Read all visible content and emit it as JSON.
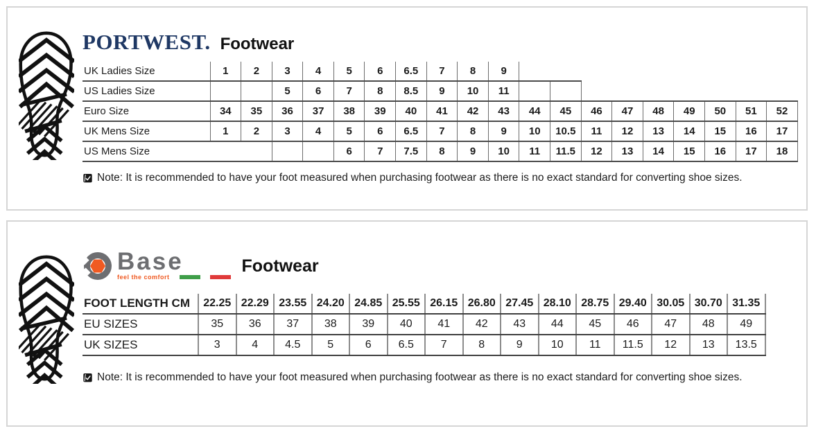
{
  "colors": {
    "portwest_navy": "#1f3864",
    "base_gray": "#6d6e71",
    "base_orange": "#f05a22",
    "flag_green": "#3f9e49",
    "flag_red": "#e03a3a",
    "table_line": "#4a4a4a",
    "panel_border": "#d5d5d5"
  },
  "icons": {
    "side": "boot-sole-print-icon",
    "note": "checked-note-icon"
  },
  "portwest": {
    "brand": "PORTWEST.",
    "product_line": "Footwear",
    "note": "Note: It is recommended to have your foot measured when purchasing footwear as there is no exact standard for converting shoe sizes.",
    "size_table": {
      "rows": [
        {
          "label": "UK Ladies Size",
          "bottomSpan": 10,
          "cells": [
            "1",
            "2",
            "3",
            "4",
            "5",
            "6",
            "6.5",
            "7",
            "8",
            "9",
            null,
            null,
            null,
            null,
            null,
            null,
            null,
            null,
            null
          ]
        },
        {
          "label": "US Ladies Size",
          "bottomSpan": 12,
          "noLeftFirst": true,
          "tops": [
            10,
            11
          ],
          "cells": [
            "",
            "",
            "5",
            "6",
            "7",
            "8",
            "8.5",
            "9",
            "10",
            "11",
            "",
            "",
            null,
            null,
            null,
            null,
            null,
            null,
            null
          ]
        },
        {
          "label": "Euro Size",
          "bottomSpan": 19,
          "tops": [
            12,
            13,
            14,
            15,
            16,
            17,
            18
          ],
          "cells": [
            "34",
            "35",
            "36",
            "37",
            "38",
            "39",
            "40",
            "41",
            "42",
            "43",
            "44",
            "45",
            "46",
            "47",
            "48",
            "49",
            "50",
            "51",
            "52"
          ]
        },
        {
          "label": "UK Mens Size",
          "bottomSpan": 19,
          "cells": [
            "1",
            "2",
            "3",
            "4",
            "5",
            "6",
            "6.5",
            "7",
            "8",
            "9",
            "10",
            "10.5",
            "11",
            "12",
            "13",
            "14",
            "15",
            "16",
            "17"
          ]
        },
        {
          "label": "US Mens Size",
          "bottomSpan": 19,
          "cells": [
            null,
            null,
            "",
            "",
            "6",
            "7",
            "7.5",
            "8",
            "9",
            "10",
            "11",
            "11.5",
            "12",
            "13",
            "14",
            "15",
            "16",
            "17",
            "18"
          ]
        }
      ]
    }
  },
  "base": {
    "brand": "Base",
    "tagline": "feel the comfort",
    "product_line": "Footwear",
    "note": "Note: It is recommended to have your foot measured when purchasing footwear as there is no exact standard for converting shoe sizes.",
    "size_table": {
      "rows": [
        {
          "label": "FOOT LENGTH CM",
          "header": true,
          "cells": [
            "22.25",
            "22.29",
            "23.55",
            "24.20",
            "24.85",
            "25.55",
            "26.15",
            "26.80",
            "27.45",
            "28.10",
            "28.75",
            "29.40",
            "30.05",
            "30.70",
            "31.35"
          ]
        },
        {
          "label": "EU SIZES",
          "cells": [
            "35",
            "36",
            "37",
            "38",
            "39",
            "40",
            "41",
            "42",
            "43",
            "44",
            "45",
            "46",
            "47",
            "48",
            "49"
          ]
        },
        {
          "label": "UK SIZES",
          "cells": [
            "3",
            "4",
            "4.5",
            "5",
            "6",
            "6.5",
            "7",
            "8",
            "9",
            "10",
            "11",
            "11.5",
            "12",
            "13",
            "13.5"
          ]
        }
      ]
    }
  }
}
